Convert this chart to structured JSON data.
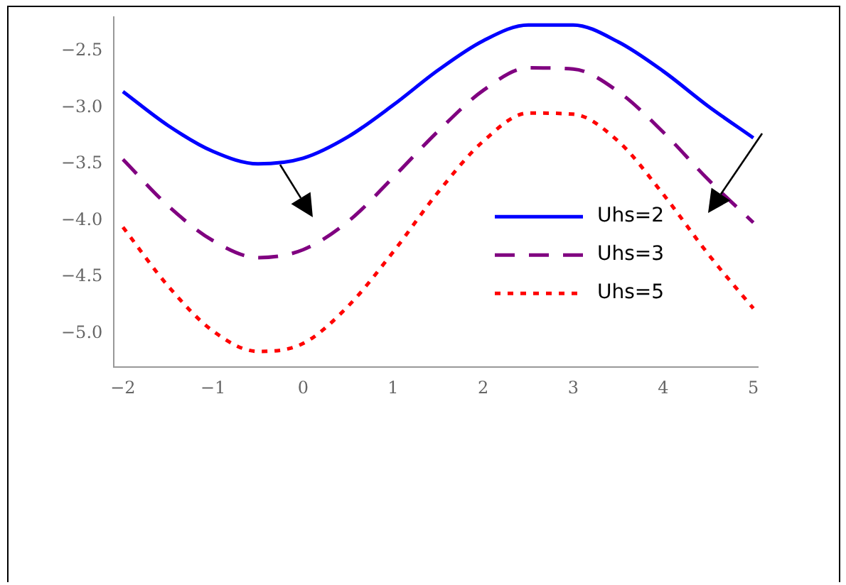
{
  "chart_data": {
    "type": "line",
    "x": [
      -2,
      -1.5,
      -1,
      -0.5,
      0,
      0.5,
      1,
      1.5,
      2,
      2.5,
      3,
      3.5,
      4,
      4.5,
      5
    ],
    "series": [
      {
        "name": "Uhs=2",
        "color": "#0000ff",
        "line_style": "solid",
        "values": [
          -2.86,
          -3.16,
          -3.39,
          -3.5,
          -3.45,
          -3.26,
          -2.98,
          -2.67,
          -2.41,
          -2.27,
          -2.27,
          -2.42,
          -2.68,
          -2.99,
          -3.27
        ]
      },
      {
        "name": "Uhs=3",
        "color": "#800080",
        "line_style": "dashed",
        "values": [
          -3.46,
          -3.87,
          -4.18,
          -4.33,
          -4.26,
          -4.01,
          -3.62,
          -3.21,
          -2.85,
          -2.65,
          -2.66,
          -2.86,
          -3.22,
          -3.64,
          -4.02
        ]
      },
      {
        "name": "Uhs=5",
        "color": "#ff0000",
        "line_style": "dotted",
        "values": [
          -4.06,
          -4.58,
          -4.98,
          -5.16,
          -5.09,
          -4.76,
          -4.28,
          -3.75,
          -3.3,
          -3.05,
          -3.06,
          -3.3,
          -3.77,
          -4.3,
          -4.78
        ]
      }
    ],
    "xlim": [
      -2.1,
      5.05
    ],
    "ylim": [
      -5.3,
      -2.2
    ],
    "xticks": [
      {
        "value": -2,
        "label": "−2"
      },
      {
        "value": -1,
        "label": "−1"
      },
      0,
      1,
      2,
      3,
      4,
      5
    ],
    "yticks": [
      {
        "value": -5,
        "label": "−5.0"
      },
      {
        "value": -4.5,
        "label": "−4.5"
      },
      {
        "value": -4,
        "label": "−4.0"
      },
      {
        "value": -3.5,
        "label": "−3.5"
      },
      {
        "value": -3,
        "label": "−3.0"
      },
      {
        "value": -2.5,
        "label": "−2.5"
      }
    ],
    "grid": false,
    "legend": "bottom right",
    "marker": "none"
  }
}
